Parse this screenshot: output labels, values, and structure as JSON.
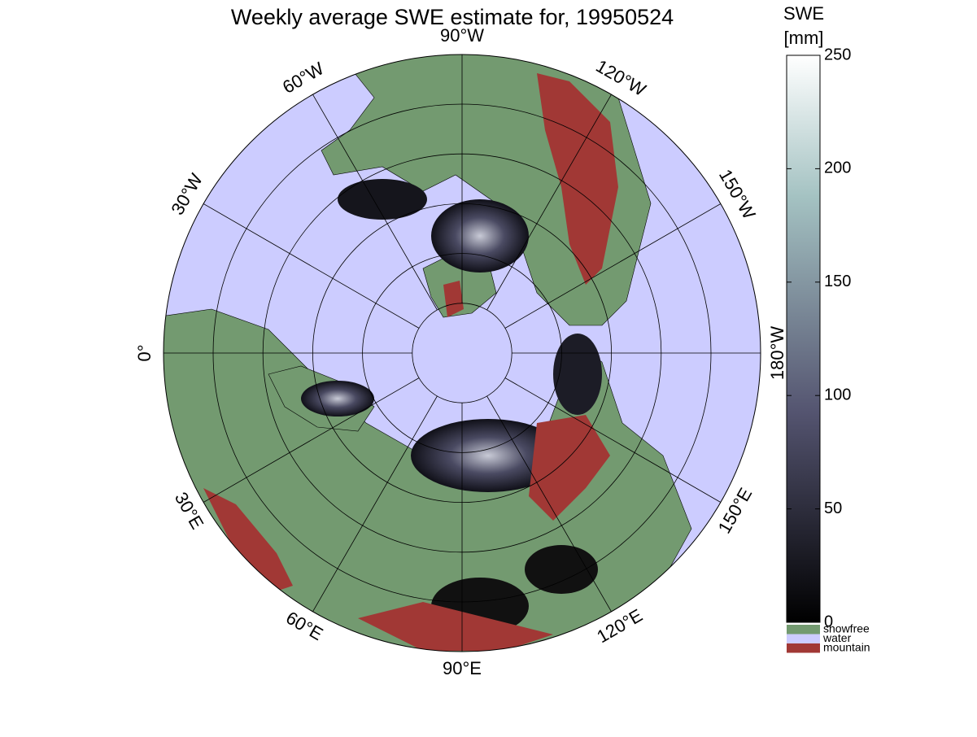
{
  "title": "Weekly average SWE estimate for, 19950524",
  "colorbar": {
    "label": [
      "SWE",
      "[mm]"
    ],
    "lim": [
      0,
      250
    ],
    "ticks": [
      0,
      50,
      100,
      150,
      200,
      250
    ]
  },
  "legend": [
    {
      "name": "snowfree",
      "color": "#739a70"
    },
    {
      "name": "water",
      "color": "#ccccff"
    },
    {
      "name": "mountain",
      "color": "#a13835"
    }
  ],
  "meridian_labels": [
    "0°",
    "30°E",
    "60°E",
    "90°E",
    "120°E",
    "150°E",
    "180°W",
    "150°W",
    "120°W",
    "90°W",
    "60°W",
    "30°W"
  ]
}
